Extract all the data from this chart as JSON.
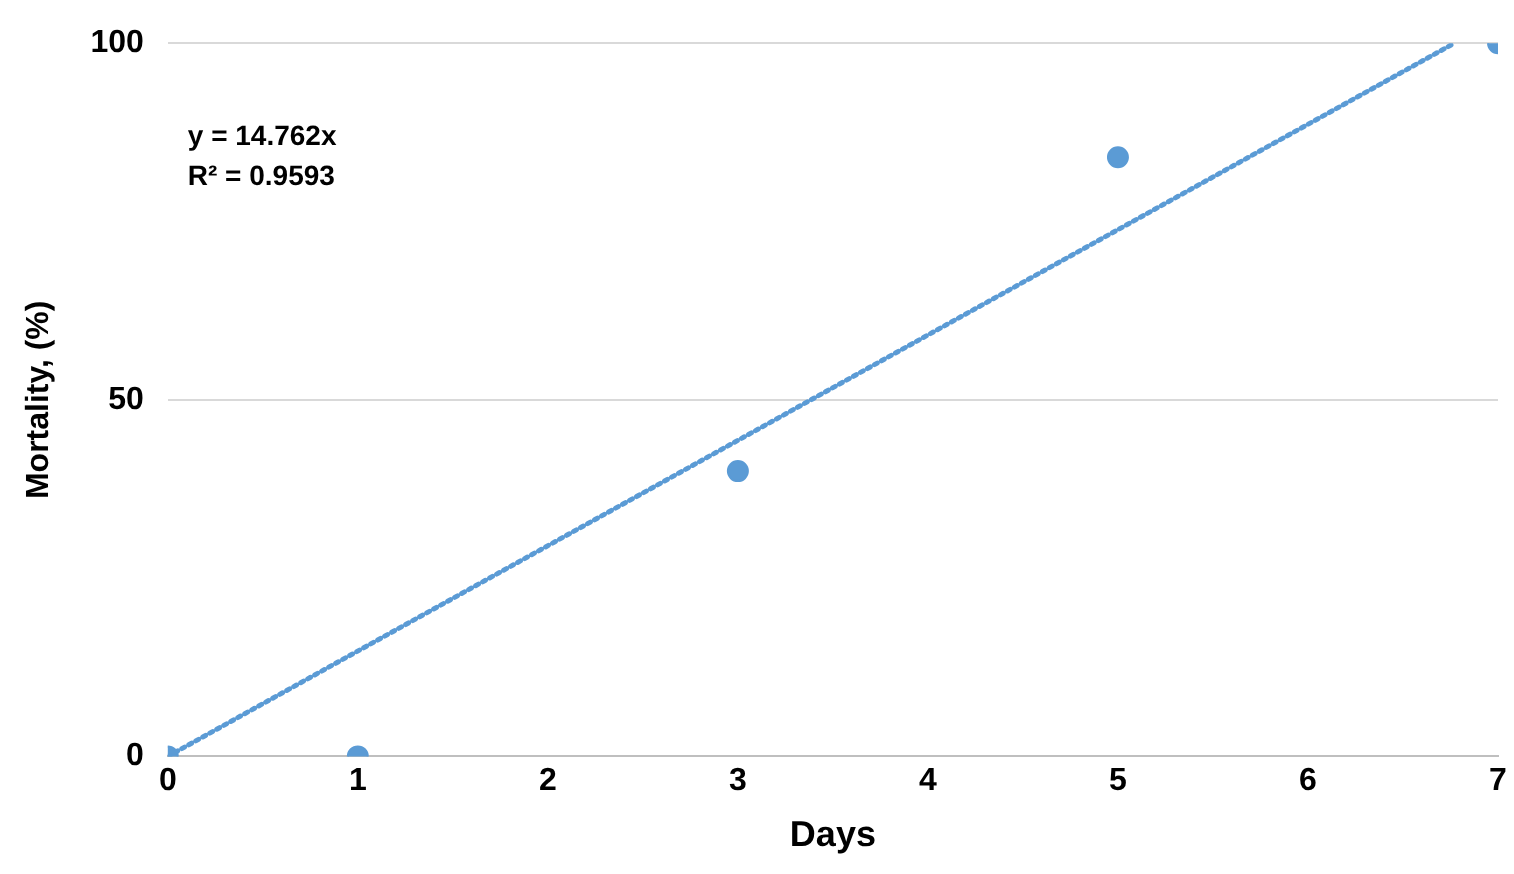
{
  "chart_data": {
    "type": "scatter",
    "xlabel": "Days",
    "ylabel": "Mortality, (%)",
    "x": [
      0,
      1,
      3,
      5,
      7
    ],
    "series": [
      {
        "type": "scatter",
        "color": "#5b9bd5",
        "values": [
          0,
          0,
          40,
          84,
          100
        ],
        "marker": "circle"
      },
      {
        "type": "line",
        "color": "#5b9bd5",
        "x": [
          0,
          6.77
        ],
        "values": [
          0,
          100
        ],
        "line_style": "dotted",
        "marker": "none"
      }
    ],
    "xlim": [
      0,
      7
    ],
    "xticks": [
      0,
      1,
      2,
      3,
      4,
      5,
      6,
      7
    ],
    "ylim": [
      0,
      100
    ],
    "yticks": [
      0,
      50,
      100
    ],
    "grid": "y",
    "legend": false,
    "annotations": [
      "y = 14.762x",
      "R² = 0.9593"
    ]
  }
}
